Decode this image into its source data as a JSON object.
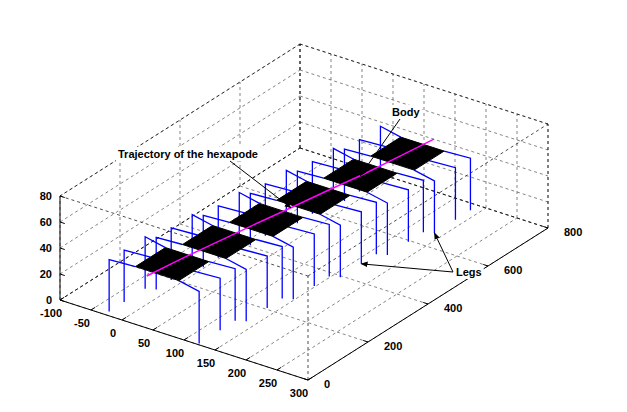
{
  "chart_data": {
    "type": "line3d",
    "annotations": [
      "Body",
      "Trajectory of the hexapode",
      "Legs"
    ],
    "xlim": [
      -100,
      300
    ],
    "xticks": [
      -100,
      -50,
      0,
      50,
      100,
      150,
      200,
      250,
      300
    ],
    "ylim": [
      0,
      800
    ],
    "yticks": [
      0,
      200,
      400,
      600,
      800
    ],
    "zlim": [
      0,
      80
    ],
    "zticks": [
      0,
      20,
      40,
      60,
      80
    ],
    "grid": true,
    "trajectory": {
      "color": "#ff00ff",
      "x": [
        40,
        48,
        58,
        68,
        79,
        89,
        100,
        108,
        116
      ],
      "y": [
        0,
        100,
        200,
        300,
        400,
        500,
        600,
        700,
        800
      ],
      "z": [
        40,
        40,
        40,
        40,
        40,
        40,
        40,
        40,
        40
      ]
    },
    "bodies": {
      "color": "#000000",
      "size": [
        70,
        100
      ],
      "x": [
        47,
        60,
        73,
        86,
        99,
        112
      ],
      "y": [
        70,
        200,
        330,
        460,
        590,
        720
      ],
      "z": [
        40,
        40,
        40,
        40,
        40,
        40
      ]
    },
    "legs": {
      "color": "#0000ff",
      "foot_x": [
        [
          -28,
          -28,
          -28,
          122,
          122,
          122
        ],
        [
          -15,
          -15,
          -15,
          135,
          135,
          135
        ],
        [
          -2,
          -2,
          -2,
          148,
          148,
          148
        ],
        [
          11,
          11,
          11,
          161,
          161,
          161
        ],
        [
          24,
          24,
          24,
          174,
          174,
          174
        ],
        [
          37,
          37,
          37,
          187,
          187,
          187
        ]
      ],
      "foot_y": [
        [
          135,
          65,
          15,
          125,
          75,
          5
        ],
        [
          265,
          195,
          145,
          255,
          205,
          135
        ],
        [
          395,
          325,
          275,
          385,
          335,
          265
        ],
        [
          525,
          455,
          405,
          515,
          465,
          395
        ],
        [
          655,
          585,
          535,
          645,
          595,
          525
        ],
        [
          785,
          715,
          665,
          775,
          725,
          655
        ]
      ]
    }
  }
}
